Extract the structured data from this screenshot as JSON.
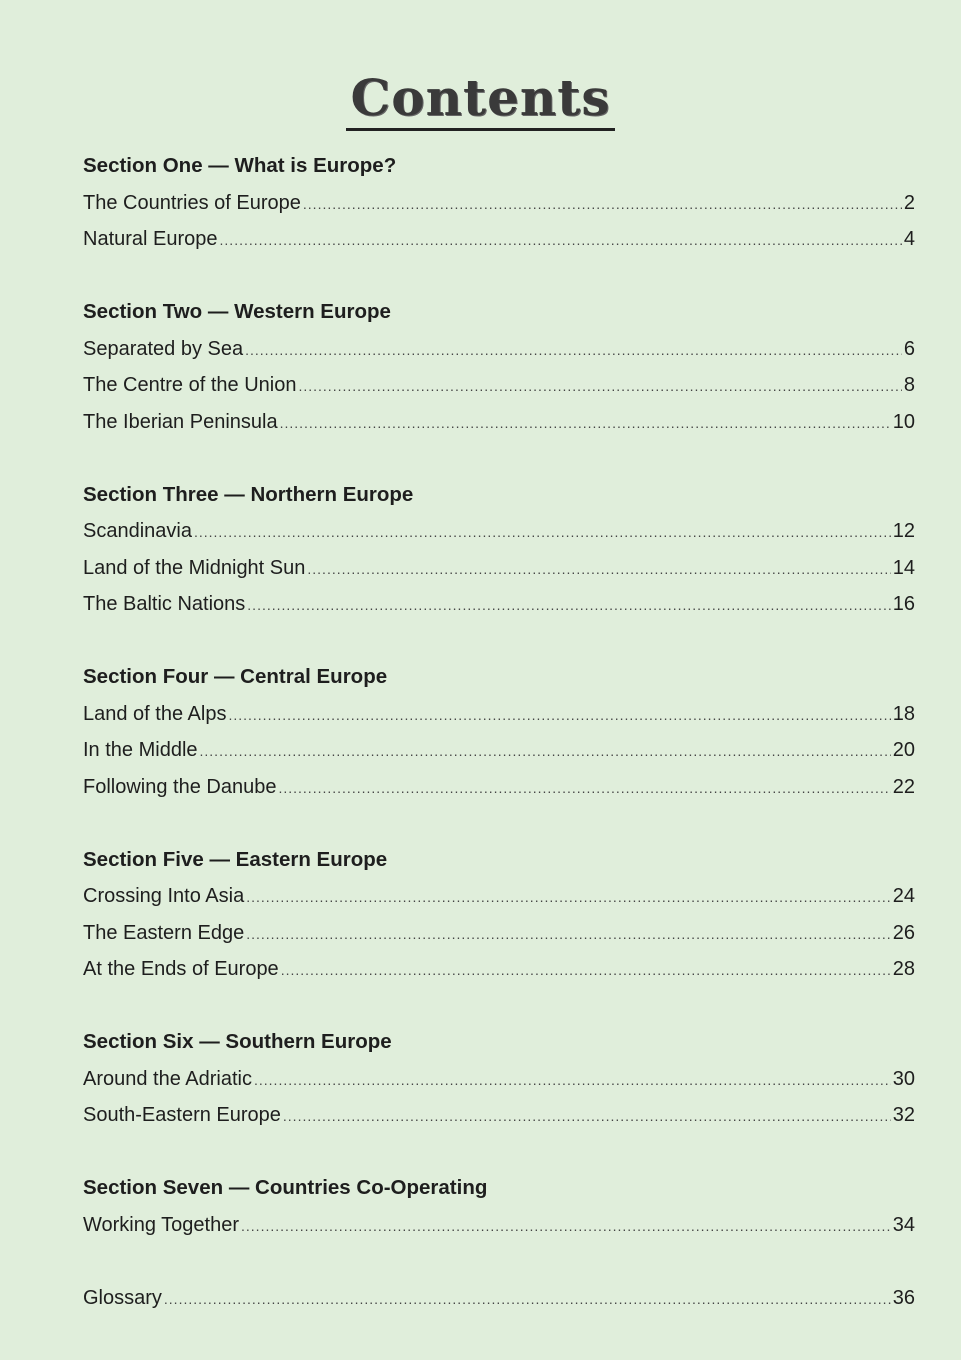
{
  "title": "Contents",
  "sections": [
    {
      "heading": "Section One — What is Europe?",
      "items": [
        {
          "label": "The Countries of Europe",
          "page": "2"
        },
        {
          "label": "Natural Europe",
          "page": "4"
        }
      ]
    },
    {
      "heading": "Section Two — Western Europe",
      "items": [
        {
          "label": "Separated by Sea",
          "page": "6"
        },
        {
          "label": "The Centre of the Union",
          "page": "8"
        },
        {
          "label": "The Iberian Peninsula",
          "page": "10"
        }
      ]
    },
    {
      "heading": "Section Three — Northern Europe",
      "items": [
        {
          "label": "Scandinavia",
          "page": "12"
        },
        {
          "label": "Land of the Midnight Sun",
          "page": "14"
        },
        {
          "label": "The Baltic Nations",
          "page": "16"
        }
      ]
    },
    {
      "heading": "Section Four — Central Europe",
      "items": [
        {
          "label": "Land of the Alps",
          "page": "18"
        },
        {
          "label": "In the Middle",
          "page": "20"
        },
        {
          "label": "Following the Danube",
          "page": "22"
        }
      ]
    },
    {
      "heading": "Section Five — Eastern Europe",
      "items": [
        {
          "label": "Crossing Into Asia",
          "page": "24"
        },
        {
          "label": "The Eastern Edge",
          "page": "26"
        },
        {
          "label": "At the Ends of Europe",
          "page": "28"
        }
      ]
    },
    {
      "heading": "Section Six — Southern Europe",
      "items": [
        {
          "label": "Around the Adriatic",
          "page": "30"
        },
        {
          "label": "South-Eastern Europe",
          "page": "32"
        }
      ]
    },
    {
      "heading": "Section Seven — Countries Co-Operating",
      "items": [
        {
          "label": "Working Together",
          "page": "34"
        }
      ]
    }
  ],
  "glossary": {
    "label": "Glossary",
    "page": "36"
  }
}
